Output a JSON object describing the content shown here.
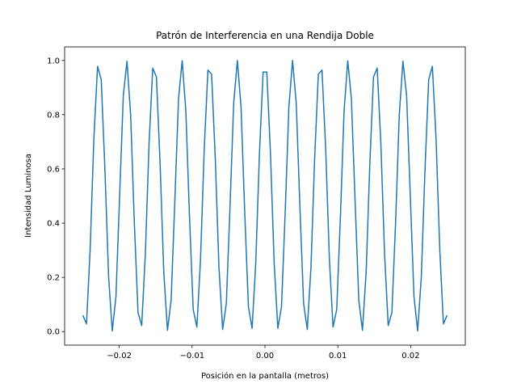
{
  "chart_data": {
    "type": "line",
    "title": "Patrón de Interferencia en una Rendija Doble",
    "xlabel": "Posición en la pantalla (metros)",
    "ylabel": "Intensidad Luminosa",
    "xlim": [
      -0.0275,
      0.0275
    ],
    "ylim": [
      -0.05,
      1.05
    ],
    "xticks": [
      -0.02,
      -0.01,
      0.0,
      0.01,
      0.02
    ],
    "xtick_labels": [
      "−0.02",
      "−0.01",
      "0.00",
      "0.01",
      "0.02"
    ],
    "yticks": [
      0.0,
      0.2,
      0.4,
      0.6,
      0.8,
      1.0
    ],
    "ytick_labels": [
      "0.0",
      "0.2",
      "0.4",
      "0.6",
      "0.8",
      "1.0"
    ],
    "grid": false,
    "series_color": "#1f77b4",
    "series": [
      {
        "formula": "cos^2(pi * x / 0.0038)",
        "x_range": [
          -0.025,
          0.025
        ],
        "num_points": 100
      }
    ]
  }
}
